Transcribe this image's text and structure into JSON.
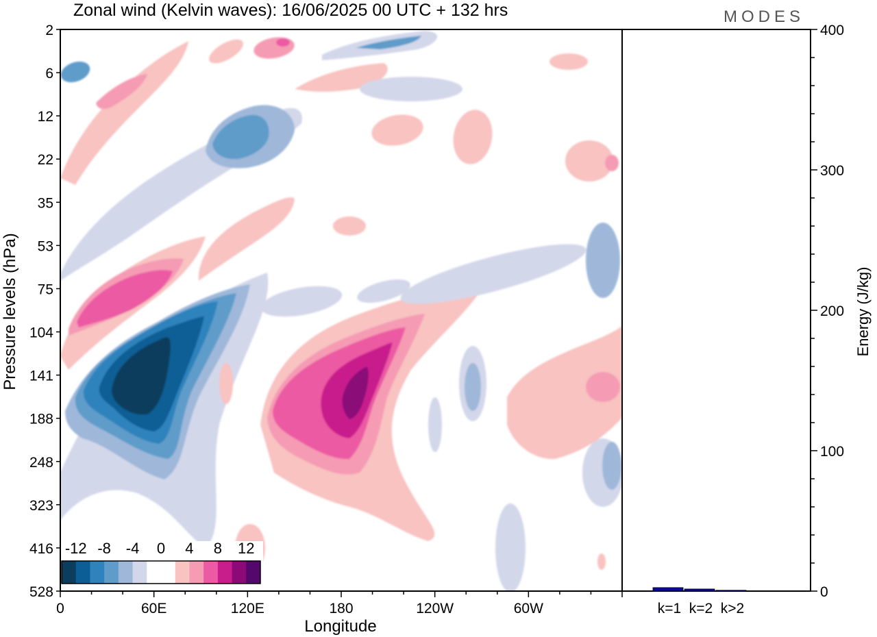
{
  "title": "Zonal wind (Kelvin waves):  16/06/2025  00 UTC  + 132 hrs",
  "logo": "MODES",
  "chart_data": [
    {
      "type": "heatmap",
      "xlabel": "Longitude",
      "ylabel": "Pressure levels (hPa)",
      "x_ticks": [
        "0",
        "60E",
        "120E",
        "180",
        "120W",
        "60W"
      ],
      "x_tick_values": [
        0,
        60,
        120,
        180,
        240,
        300
      ],
      "xlim": [
        0,
        360
      ],
      "y_ticks": [
        "2",
        "6",
        "12",
        "22",
        "35",
        "53",
        "75",
        "104",
        "141",
        "188",
        "248",
        "323",
        "416",
        "528"
      ],
      "colorbar": {
        "labels": [
          "-12",
          "-8",
          "-4",
          "0",
          "4",
          "8",
          "12"
        ],
        "colors": [
          "#0c3d5c",
          "#0b5f96",
          "#2f83bd",
          "#5f9cca",
          "#9fb8d9",
          "#d3d7ea",
          "#ffffff",
          "#ffffff",
          "#f8c3c1",
          "#f59bb4",
          "#ec5aa3",
          "#c81e8c",
          "#8b0a78",
          "#54086c"
        ]
      },
      "features": [
        {
          "sign": "neg",
          "lon": 48,
          "level": 141,
          "peak": -14
        },
        {
          "sign": "pos",
          "lon": 188,
          "level": 141,
          "peak": 12
        },
        {
          "sign": "pos",
          "lon": 50,
          "level": 104,
          "peak": 8
        },
        {
          "sign": "neg",
          "lon": 45,
          "level": 12,
          "peak": -6
        },
        {
          "sign": "pos",
          "lon": 340,
          "level": 141,
          "peak": 6
        },
        {
          "sign": "neg",
          "lon": 355,
          "level": 248,
          "peak": -6
        }
      ]
    },
    {
      "type": "bar",
      "ylabel": "Energy (J/kg)",
      "categories": [
        "k=1",
        "k=2",
        "k>2"
      ],
      "values": [
        2.5,
        1.5,
        0.6
      ],
      "ylim": [
        0,
        400
      ],
      "y_ticks": [
        "0",
        "100",
        "200",
        "300",
        "400"
      ],
      "y_tick_values": [
        0,
        100,
        200,
        300,
        400
      ],
      "bar_color": "#0a0aa0"
    }
  ]
}
